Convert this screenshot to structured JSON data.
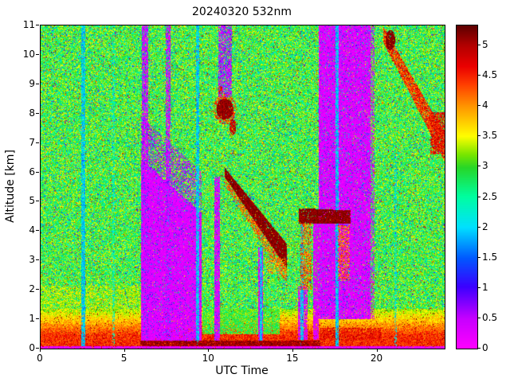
{
  "chart_data": {
    "type": "heatmap",
    "title": "20240320 532nm",
    "xlabel": "UTC Time",
    "ylabel": "Altitude [km]",
    "x_range": [
      0,
      24
    ],
    "y_range": [
      0,
      11
    ],
    "x_ticks": [
      0,
      5,
      10,
      15,
      20
    ],
    "y_ticks": [
      0,
      1,
      2,
      3,
      4,
      5,
      6,
      7,
      8,
      9,
      10,
      11
    ],
    "grid": false,
    "legend_position": "none",
    "colorbar": {
      "vmin": 0,
      "vmax": 5.33,
      "ticks": [
        0,
        0.5,
        1,
        1.5,
        2,
        2.5,
        3,
        3.5,
        4,
        4.5,
        5
      ],
      "position": "right"
    },
    "colormap_stops": [
      {
        "t": 0.0,
        "c": [
          255,
          0,
          255
        ]
      },
      {
        "t": 0.09,
        "c": [
          200,
          0,
          255
        ]
      },
      {
        "t": 0.19,
        "c": [
          60,
          0,
          255
        ]
      },
      {
        "t": 0.28,
        "c": [
          0,
          90,
          255
        ]
      },
      {
        "t": 0.375,
        "c": [
          0,
          225,
          255
        ]
      },
      {
        "t": 0.47,
        "c": [
          0,
          255,
          160
        ]
      },
      {
        "t": 0.56,
        "c": [
          40,
          215,
          40
        ]
      },
      {
        "t": 0.6,
        "c": [
          120,
          230,
          0
        ]
      },
      {
        "t": 0.657,
        "c": [
          255,
          255,
          0
        ]
      },
      {
        "t": 0.75,
        "c": [
          255,
          150,
          0
        ]
      },
      {
        "t": 0.82,
        "c": [
          255,
          60,
          0
        ]
      },
      {
        "t": 0.875,
        "c": [
          235,
          0,
          0
        ]
      },
      {
        "t": 0.938,
        "c": [
          180,
          0,
          0
        ]
      },
      {
        "t": 1.0,
        "c": [
          95,
          0,
          0
        ]
      }
    ],
    "background_noise": {
      "mean_range": [
        2.25,
        3.6
      ],
      "blue_speck_p": 0.045,
      "red_speck_p": 0.025
    },
    "surface_layer": {
      "top_km": 1.35,
      "peak_value": 4.45,
      "description": "strong orange-red aerosol layer below ~1 km across all times, magenta strip at 0 km"
    },
    "seed": 7,
    "regions": [
      {
        "kind": "rect",
        "x": [
          0,
          5.95
        ],
        "y": [
          1.25,
          2.15
        ],
        "v": [
          2.95,
          3.75
        ],
        "p": 0.6
      },
      {
        "kind": "rect",
        "x": [
          4.25,
          4.42
        ],
        "y": [
          0.1,
          11
        ],
        "v": [
          1.9,
          2.7
        ],
        "p": 0.45
      },
      {
        "kind": "rect",
        "x": [
          9.6,
          14.2
        ],
        "y": [
          0.5,
          1.35
        ],
        "v": [
          2.5,
          3.4
        ],
        "p": 0.85
      },
      {
        "kind": "band",
        "x": [
          5.95,
          9.58
        ],
        "ytop": [
          6.45,
          4.6
        ],
        "th": [
          6.2,
          4.35
        ],
        "v": [
          0.04,
          0.5
        ],
        "p": 0.97,
        "specks": {
          "p": 0.07,
          "v": [
            0.9,
            1.9
          ]
        }
      },
      {
        "kind": "band",
        "x": [
          5.95,
          9.58
        ],
        "ytop": [
          7.9,
          6.0
        ],
        "th": [
          1.5,
          1.45
        ],
        "v": [
          0.1,
          0.9
        ],
        "p": 0.4
      },
      {
        "kind": "rect",
        "x": [
          6.02,
          6.38
        ],
        "y": [
          0.3,
          11
        ],
        "v": [
          0.05,
          0.6
        ],
        "p": 0.75,
        "specks": {
          "p": 0.15,
          "v": [
            1,
            2
          ]
        }
      },
      {
        "kind": "rect",
        "x": [
          7.42,
          7.7
        ],
        "y": [
          0.3,
          11
        ],
        "v": [
          0.05,
          0.6
        ],
        "p": 0.72,
        "specks": {
          "p": 0.15,
          "v": [
            1,
            2
          ]
        }
      },
      {
        "kind": "rect",
        "x": [
          10.32,
          10.64
        ],
        "y": [
          0.25,
          5.85
        ],
        "v": [
          0.05,
          0.55
        ],
        "p": 0.9,
        "specks": {
          "p": 0.08,
          "v": [
            1,
            1.9
          ]
        }
      },
      {
        "kind": "rect",
        "x": [
          10.55,
          11.35
        ],
        "y": [
          8.55,
          11
        ],
        "v": [
          0.08,
          0.7
        ],
        "p": 0.68,
        "specks": {
          "p": 0.2,
          "v": [
            1,
            2
          ]
        }
      },
      {
        "kind": "rect",
        "x": [
          12.9,
          13.22
        ],
        "y": [
          0.25,
          3.45
        ],
        "v": [
          0.05,
          0.55
        ],
        "p": 0.85
      },
      {
        "kind": "rect",
        "x": [
          15.3,
          15.88
        ],
        "y": [
          0.3,
          2.1
        ],
        "v": [
          0.05,
          0.6
        ],
        "p": 0.75
      },
      {
        "kind": "rect",
        "x": [
          16.18,
          16.52
        ],
        "y": [
          0.3,
          4.35
        ],
        "v": [
          0.05,
          0.55
        ],
        "p": 0.85
      },
      {
        "kind": "rect",
        "x": [
          16.52,
          19.58
        ],
        "y": [
          1.0,
          11
        ],
        "v": [
          0.04,
          0.5
        ],
        "p": 0.95,
        "specks": {
          "p": 0.09,
          "v": [
            0.9,
            2.0
          ]
        }
      },
      {
        "kind": "rect",
        "x": [
          19.58,
          19.85
        ],
        "y": [
          1.0,
          11
        ],
        "v": [
          0.05,
          0.6
        ],
        "p": 0.45
      },
      {
        "kind": "rect",
        "x": [
          16.6,
          20.2
        ],
        "y": [
          0.3,
          0.7
        ],
        "v": [
          4.3,
          5.0
        ],
        "p": 0.6
      },
      {
        "kind": "rect",
        "x": [
          2.42,
          2.64
        ],
        "y": [
          0.08,
          11
        ],
        "v": [
          1.55,
          2.35
        ],
        "p": 0.85
      },
      {
        "kind": "rect",
        "x": [
          9.25,
          9.44
        ],
        "y": [
          0.08,
          11
        ],
        "v": [
          1.55,
          2.35
        ],
        "p": 0.85
      },
      {
        "kind": "rect",
        "x": [
          13.0,
          13.14
        ],
        "y": [
          0.08,
          3.45
        ],
        "v": [
          1.55,
          2.35
        ],
        "p": 0.9
      },
      {
        "kind": "rect",
        "x": [
          15.45,
          15.62
        ],
        "y": [
          0.08,
          4.3
        ],
        "v": [
          1.55,
          2.35
        ],
        "p": 0.85
      },
      {
        "kind": "rect",
        "x": [
          17.52,
          17.7
        ],
        "y": [
          0.08,
          11
        ],
        "v": [
          1.55,
          2.35
        ],
        "p": 0.85
      },
      {
        "kind": "rect",
        "x": [
          21.02,
          21.16
        ],
        "y": [
          0.08,
          6.5
        ],
        "v": [
          1.7,
          2.4
        ],
        "p": 0.45
      },
      {
        "kind": "rect",
        "x": [
          5.9,
          16.6
        ],
        "y": [
          0.08,
          0.26
        ],
        "v": [
          4.8,
          5.33
        ],
        "p": 0.9
      },
      {
        "kind": "ellipse",
        "c": [
          10.95,
          8.15
        ],
        "r": [
          0.68,
          0.52
        ],
        "v": [
          4.1,
          4.8
        ],
        "p": 0.55
      },
      {
        "kind": "ellipse",
        "c": [
          10.95,
          8.15
        ],
        "r": [
          0.5,
          0.36
        ],
        "v": [
          4.9,
          5.33
        ],
        "p": 0.97
      },
      {
        "kind": "ellipse",
        "c": [
          11.42,
          7.55
        ],
        "r": [
          0.2,
          0.28
        ],
        "v": [
          4.5,
          5.15
        ],
        "p": 0.85
      },
      {
        "kind": "ellipse",
        "c": [
          10.68,
          8.8
        ],
        "r": [
          0.13,
          0.14
        ],
        "v": [
          4.3,
          4.9
        ],
        "p": 0.7
      },
      {
        "kind": "band",
        "x": [
          10.95,
          14.65
        ],
        "ytop": [
          5.85,
          2.72
        ],
        "th": [
          0.3,
          0.55
        ],
        "v": [
          3.8,
          4.7
        ],
        "p": 0.55
      },
      {
        "kind": "band",
        "x": [
          10.95,
          14.65
        ],
        "ytop": [
          6.15,
          3.55
        ],
        "th": [
          0.32,
          0.85
        ],
        "v": [
          4.95,
          5.33
        ],
        "p": 0.97
      },
      {
        "kind": "rect",
        "x": [
          13.35,
          14.6
        ],
        "y": [
          2.55,
          3.1
        ],
        "v": [
          3.5,
          4.5
        ],
        "p": 0.35
      },
      {
        "kind": "band",
        "x": [
          15.35,
          18.42
        ],
        "ytop": [
          4.78,
          4.7
        ],
        "th": [
          0.52,
          0.45
        ],
        "v": [
          4.95,
          5.33
        ],
        "p": 0.96
      },
      {
        "kind": "rect",
        "x": [
          15.42,
          16.08
        ],
        "y": [
          2.0,
          4.25
        ],
        "v": [
          3.7,
          4.8
        ],
        "p": 0.55
      },
      {
        "kind": "rect",
        "x": [
          17.68,
          18.38
        ],
        "y": [
          2.3,
          4.2
        ],
        "v": [
          3.6,
          4.7
        ],
        "p": 0.5
      },
      {
        "kind": "band",
        "x": [
          20.35,
          23.98
        ],
        "ytop": [
          10.98,
          7.35
        ],
        "th": [
          0.55,
          0.95
        ],
        "v": [
          3.9,
          5.0
        ],
        "p": 0.9
      },
      {
        "kind": "ellipse",
        "c": [
          20.78,
          10.5
        ],
        "r": [
          0.28,
          0.34
        ],
        "v": [
          5.0,
          5.33
        ],
        "p": 0.9
      },
      {
        "kind": "rect",
        "x": [
          23.15,
          24
        ],
        "y": [
          6.6,
          8.05
        ],
        "v": [
          4.2,
          5.1
        ],
        "p": 0.75
      },
      {
        "kind": "rect",
        "x": [
          0,
          24
        ],
        "y": [
          0,
          0.07
        ],
        "v": [
          0.05,
          0.5
        ],
        "p": 0.95
      }
    ]
  }
}
